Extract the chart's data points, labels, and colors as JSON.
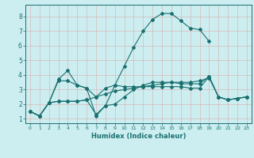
{
  "title": "",
  "xlabel": "Humidex (Indice chaleur)",
  "bg_color": "#cceef0",
  "line_color": "#1a7070",
  "grid_color": "#b8dede",
  "xlim": [
    -0.5,
    23.5
  ],
  "ylim": [
    0.7,
    8.8
  ],
  "yticks": [
    1,
    2,
    3,
    4,
    5,
    6,
    7,
    8
  ],
  "xticks": [
    0,
    1,
    2,
    3,
    4,
    5,
    6,
    7,
    8,
    9,
    10,
    11,
    12,
    13,
    14,
    15,
    16,
    17,
    18,
    19,
    20,
    21,
    22,
    23
  ],
  "lines": [
    {
      "x": [
        0,
        1,
        2,
        3,
        4,
        5,
        6,
        7,
        8,
        9,
        10,
        11,
        12,
        13,
        14,
        15,
        16,
        17,
        18,
        19
      ],
      "y": [
        1.5,
        1.2,
        2.1,
        3.7,
        4.3,
        3.3,
        3.1,
        1.2,
        1.9,
        3.3,
        4.6,
        5.9,
        7.0,
        7.8,
        8.2,
        8.2,
        7.7,
        7.2,
        7.1,
        6.3
      ]
    },
    {
      "x": [
        0,
        1,
        2,
        3,
        4,
        5,
        6,
        7,
        8,
        9,
        10,
        11,
        12,
        13,
        14,
        15,
        16,
        17,
        18,
        19,
        20,
        21,
        22,
        23
      ],
      "y": [
        1.5,
        1.2,
        2.1,
        3.6,
        3.6,
        3.3,
        3.1,
        2.5,
        3.1,
        3.3,
        3.2,
        3.2,
        3.2,
        3.2,
        3.2,
        3.2,
        3.2,
        3.1,
        3.1,
        3.9,
        2.5,
        2.3,
        2.4,
        2.5
      ]
    },
    {
      "x": [
        0,
        1,
        2,
        3,
        4,
        5,
        6,
        7,
        8,
        9,
        10,
        11,
        12,
        13,
        14,
        15,
        16,
        17,
        18,
        19,
        20,
        21,
        22,
        23
      ],
      "y": [
        1.5,
        1.2,
        2.1,
        2.2,
        2.2,
        2.2,
        2.3,
        2.5,
        2.7,
        2.9,
        3.0,
        3.1,
        3.2,
        3.3,
        3.4,
        3.5,
        3.5,
        3.5,
        3.6,
        3.8,
        2.5,
        2.3,
        2.4,
        2.5
      ]
    },
    {
      "x": [
        0,
        1,
        2,
        3,
        4,
        5,
        6,
        7,
        8,
        9,
        10,
        11,
        12,
        13,
        14,
        15,
        16,
        17,
        18,
        19,
        20,
        21,
        22,
        23
      ],
      "y": [
        1.5,
        1.2,
        2.1,
        2.2,
        2.2,
        2.2,
        2.3,
        1.3,
        1.9,
        2.0,
        2.5,
        3.0,
        3.3,
        3.5,
        3.5,
        3.5,
        3.4,
        3.4,
        3.4,
        3.9,
        2.5,
        2.3,
        2.4,
        2.5
      ]
    }
  ]
}
